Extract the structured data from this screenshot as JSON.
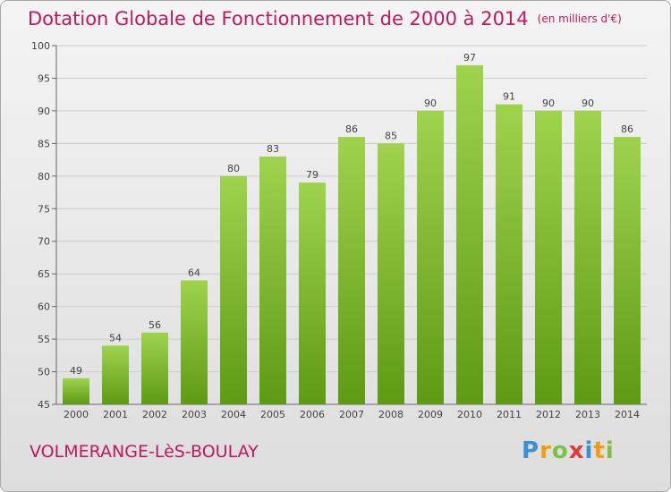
{
  "header": {
    "title": "Dotation Globale de Fonctionnement de 2000 à 2014",
    "unit_note": "(en milliers d'€)"
  },
  "footer": {
    "commune": "VOLMERANGE-LèS-BOULAY",
    "logo": "Proxiti"
  },
  "colors": {
    "title": "#c0185e",
    "bar_top": "#9fd34e",
    "bar_bottom": "#5e9a14",
    "grid": "#cccccc"
  },
  "chart_data": {
    "type": "bar",
    "title": "Dotation Globale de Fonctionnement de 2000 à 2014",
    "subtitle": "(en milliers d'€)",
    "categories": [
      "2000",
      "2001",
      "2002",
      "2003",
      "2004",
      "2005",
      "2006",
      "2007",
      "2008",
      "2009",
      "2010",
      "2011",
      "2012",
      "2013",
      "2014"
    ],
    "values": [
      49,
      54,
      56,
      64,
      80,
      83,
      79,
      86,
      85,
      90,
      97,
      91,
      90,
      90,
      86
    ],
    "ylim": [
      45,
      100
    ],
    "yticks": [
      45,
      50,
      55,
      60,
      65,
      70,
      75,
      80,
      85,
      90,
      95,
      100
    ],
    "grid": true,
    "xlabel": "",
    "ylabel": ""
  }
}
